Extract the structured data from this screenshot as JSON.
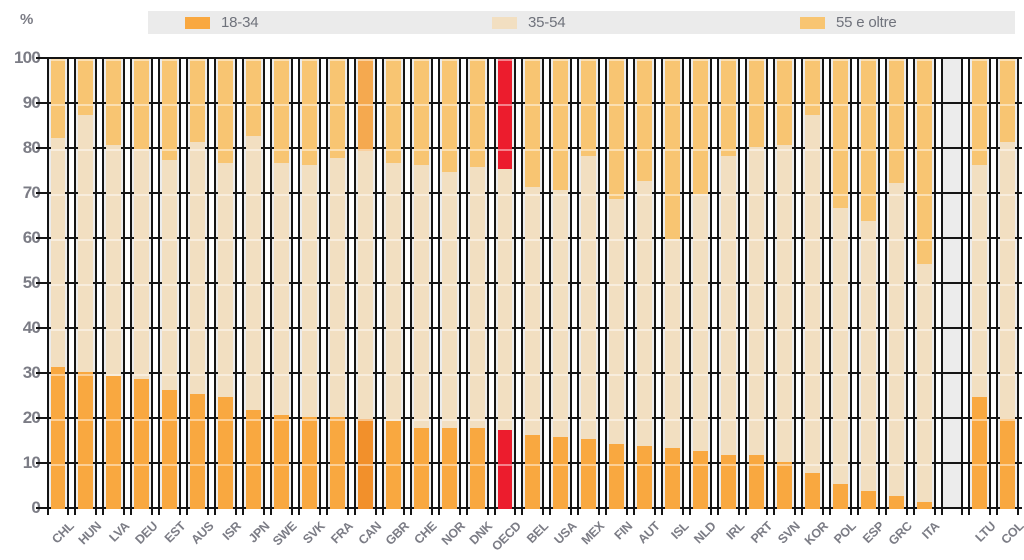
{
  "unit_label": "%",
  "legend": {
    "items": [
      {
        "label": "18-34",
        "color": "#F9A840"
      },
      {
        "label": "35-54",
        "color": "#F2DFC1"
      },
      {
        "label": "55 e oltre",
        "color": "#F8C572"
      }
    ]
  },
  "y_axis": {
    "ticks": [
      100,
      90,
      80,
      70,
      60,
      50,
      40,
      30,
      20,
      10,
      0
    ]
  },
  "colors": {
    "normal": {
      "young": "#F9A840",
      "mid": "#F2DFC1",
      "old": "#F8C572"
    },
    "highlight": {
      "young": "#F2902B",
      "mid": "#F2DFC1",
      "old": "#F5A94F"
    },
    "oecd": {
      "young": "#EC1C2D",
      "mid": "#F2DFC1",
      "old": "#EC1C2D"
    },
    "column_bg": "#ECECEC",
    "gridline": "#141414",
    "label_gray": "#7B7C85",
    "legend_bg": "#EBEBEB"
  },
  "chart_data": {
    "type": "bar",
    "subtype": "stacked-100",
    "ylabel": "%",
    "ylim": [
      0,
      100
    ],
    "grid": true,
    "legend_position": "top",
    "series_names": [
      "18-34",
      "35-54",
      "55 e oltre"
    ],
    "bars": [
      {
        "code": "CHL",
        "young": 31.5,
        "mid": 51.0,
        "old": 17.5,
        "style": "normal"
      },
      {
        "code": "HUN",
        "young": 30.5,
        "mid": 57.0,
        "old": 12.5,
        "style": "normal"
      },
      {
        "code": "LVA",
        "young": 29.5,
        "mid": 51.5,
        "old": 19.0,
        "style": "normal"
      },
      {
        "code": "DEU",
        "young": 29.0,
        "mid": 51.0,
        "old": 20.0,
        "style": "normal"
      },
      {
        "code": "EST",
        "young": 26.5,
        "mid": 51.0,
        "old": 22.5,
        "style": "normal"
      },
      {
        "code": "AUS",
        "young": 25.5,
        "mid": 56.0,
        "old": 18.5,
        "style": "normal"
      },
      {
        "code": "ISR",
        "young": 25.0,
        "mid": 52.0,
        "old": 23.0,
        "style": "normal"
      },
      {
        "code": "JPN",
        "young": 22.0,
        "mid": 61.0,
        "old": 17.0,
        "style": "normal"
      },
      {
        "code": "SWE",
        "young": 21.0,
        "mid": 56.0,
        "old": 23.0,
        "style": "normal"
      },
      {
        "code": "SVK",
        "young": 20.5,
        "mid": 56.0,
        "old": 23.5,
        "style": "normal"
      },
      {
        "code": "FRA",
        "young": 20.5,
        "mid": 57.5,
        "old": 22.0,
        "style": "normal"
      },
      {
        "code": "CAN",
        "young": 20.0,
        "mid": 59.5,
        "old": 20.5,
        "style": "highlight"
      },
      {
        "code": "GBR",
        "young": 19.5,
        "mid": 57.5,
        "old": 23.0,
        "style": "normal"
      },
      {
        "code": "CHE",
        "young": 18.0,
        "mid": 58.5,
        "old": 23.5,
        "style": "normal"
      },
      {
        "code": "NOR",
        "young": 18.0,
        "mid": 57.0,
        "old": 25.0,
        "style": "normal"
      },
      {
        "code": "DNK",
        "young": 18.0,
        "mid": 58.0,
        "old": 24.0,
        "style": "normal"
      },
      {
        "code": "OECD",
        "young": 17.5,
        "mid": 58.0,
        "old": 24.5,
        "style": "oecd"
      },
      {
        "code": "BEL",
        "young": 16.5,
        "mid": 55.0,
        "old": 28.5,
        "style": "normal"
      },
      {
        "code": "USA",
        "young": 16.0,
        "mid": 55.0,
        "old": 29.0,
        "style": "normal"
      },
      {
        "code": "MEX",
        "young": 15.5,
        "mid": 63.0,
        "old": 21.5,
        "style": "normal"
      },
      {
        "code": "FIN",
        "young": 14.5,
        "mid": 54.5,
        "old": 31.0,
        "style": "normal"
      },
      {
        "code": "AUT",
        "young": 14.0,
        "mid": 59.0,
        "old": 27.0,
        "style": "normal"
      },
      {
        "code": "ISL",
        "young": 13.5,
        "mid": 46.5,
        "old": 40.0,
        "style": "normal"
      },
      {
        "code": "NLD",
        "young": 13.0,
        "mid": 57.0,
        "old": 30.0,
        "style": "normal"
      },
      {
        "code": "IRL",
        "young": 12.0,
        "mid": 66.5,
        "old": 21.5,
        "style": "normal"
      },
      {
        "code": "PRT",
        "young": 12.0,
        "mid": 68.5,
        "old": 19.5,
        "style": "normal"
      },
      {
        "code": "SVN",
        "young": 10.5,
        "mid": 70.5,
        "old": 19.0,
        "style": "normal"
      },
      {
        "code": "KOR",
        "young": 8.0,
        "mid": 79.5,
        "old": 12.5,
        "style": "normal"
      },
      {
        "code": "POL",
        "young": 5.5,
        "mid": 61.5,
        "old": 33.0,
        "style": "normal"
      },
      {
        "code": "ESP",
        "young": 4.0,
        "mid": 60.0,
        "old": 36.0,
        "style": "normal"
      },
      {
        "code": "GRC",
        "young": 3.0,
        "mid": 69.5,
        "old": 27.5,
        "style": "normal"
      },
      {
        "code": "ITA",
        "young": 1.5,
        "mid": 53.0,
        "old": 45.5,
        "style": "normal"
      },
      {
        "gap": true
      },
      {
        "code": "LTU",
        "young": 25.0,
        "mid": 51.5,
        "old": 23.5,
        "style": "normal"
      },
      {
        "code": "COL",
        "young": 20.0,
        "mid": 61.5,
        "old": 18.5,
        "style": "normal"
      }
    ]
  }
}
